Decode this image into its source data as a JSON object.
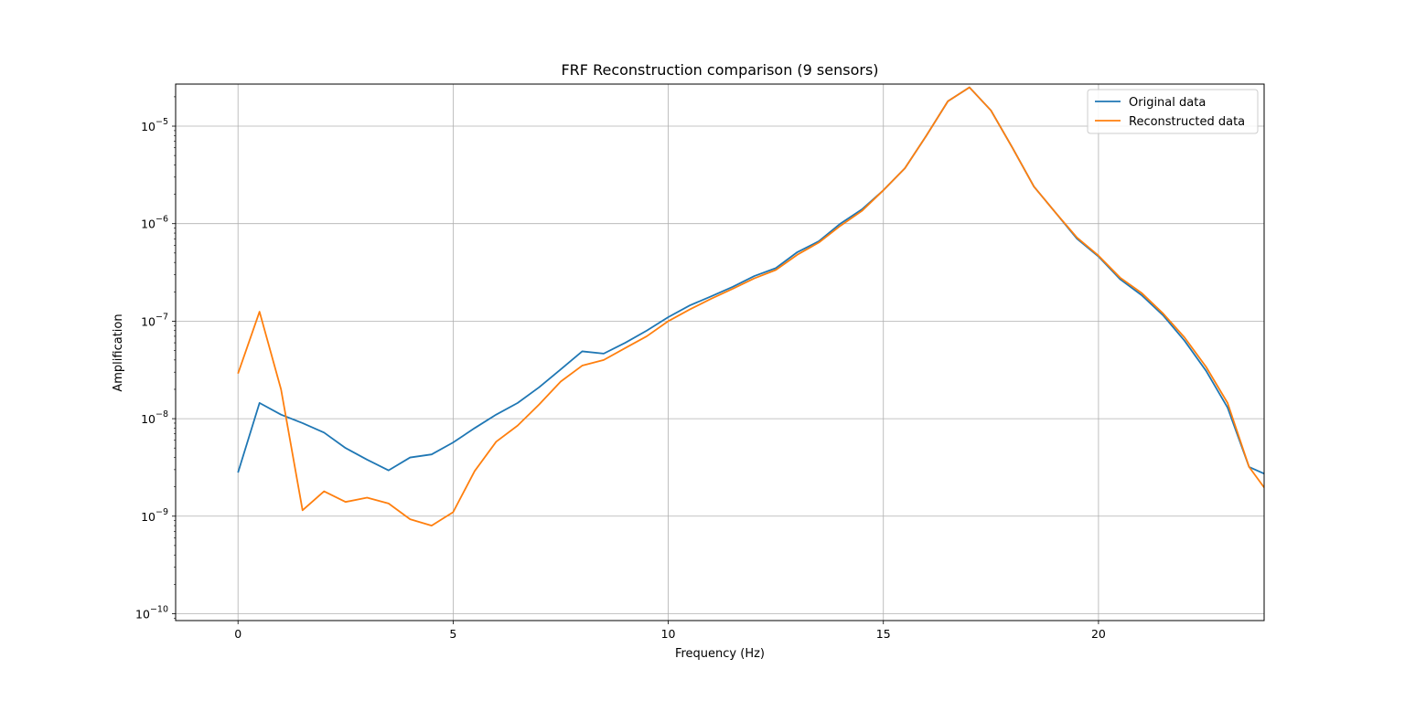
{
  "chart_data": {
    "type": "line",
    "title": "FRF Reconstruction comparison (9 sensors)",
    "xlabel": "Frequency (Hz)",
    "ylabel": "Amplification",
    "yscale": "log",
    "xlim": [
      -1.45,
      23.85
    ],
    "ylim": [
      8.5e-11,
      2.7e-05
    ],
    "grid": true,
    "legend_position": "top-right",
    "x_ticks": [
      0,
      5,
      10,
      15,
      20
    ],
    "x_tick_labels": [
      "0",
      "5",
      "10",
      "15",
      "20"
    ],
    "y_ticks": [
      1e-10,
      1e-09,
      1e-08,
      1e-07,
      1e-06,
      1e-05
    ],
    "y_tick_labels": [
      {
        "base": "10",
        "exp": "−10"
      },
      {
        "base": "10",
        "exp": "−9"
      },
      {
        "base": "10",
        "exp": "−8"
      },
      {
        "base": "10",
        "exp": "−7"
      },
      {
        "base": "10",
        "exp": "−6"
      },
      {
        "base": "10",
        "exp": "−5"
      }
    ],
    "x": [
      0,
      0.5,
      1,
      1.5,
      2,
      2.5,
      3,
      3.5,
      4,
      4.5,
      5,
      5.5,
      6,
      6.5,
      7,
      7.5,
      8,
      8.5,
      9,
      9.5,
      10,
      10.5,
      11,
      11.5,
      12,
      12.5,
      13,
      13.5,
      14,
      14.5,
      15,
      15.5,
      16,
      16.5,
      17,
      17.5,
      18,
      18.5,
      19,
      19.5,
      20,
      20.5,
      21,
      21.5,
      22,
      22.5,
      23,
      23.5,
      24
    ],
    "series": [
      {
        "name": "Original data",
        "color": "#1f77b4",
        "values": [
          2.8e-09,
          1.45e-08,
          1.1e-08,
          9e-09,
          7.2e-09,
          5e-09,
          3.8e-09,
          2.95e-09,
          4e-09,
          4.3e-09,
          5.7e-09,
          8e-09,
          1.1e-08,
          1.45e-08,
          2.1e-08,
          3.2e-08,
          4.9e-08,
          4.65e-08,
          6e-08,
          8e-08,
          1.1e-07,
          1.45e-07,
          1.8e-07,
          2.25e-07,
          2.9e-07,
          3.5e-07,
          5.1e-07,
          6.6e-07,
          1e-06,
          1.4e-06,
          2.2e-06,
          3.7e-06,
          8e-06,
          1.8e-05,
          2.5e-05,
          1.45e-05,
          6e-06,
          2.4e-06,
          1.3e-06,
          7e-07,
          4.6e-07,
          2.7e-07,
          1.85e-07,
          1.15e-07,
          6.3e-08,
          3.1e-08,
          1.3e-08,
          3.2e-09,
          2.55e-09
        ]
      },
      {
        "name": "Reconstructed data",
        "color": "#ff7f0e",
        "values": [
          2.9e-08,
          1.25e-07,
          2e-08,
          1.15e-09,
          1.8e-09,
          1.4e-09,
          1.55e-09,
          1.35e-09,
          9.3e-10,
          8e-10,
          1.1e-09,
          2.9e-09,
          5.8e-09,
          8.5e-09,
          1.4e-08,
          2.4e-08,
          3.5e-08,
          4e-08,
          5.3e-08,
          7e-08,
          1e-07,
          1.32e-07,
          1.7e-07,
          2.15e-07,
          2.75e-07,
          3.35e-07,
          4.8e-07,
          6.4e-07,
          9.5e-07,
          1.35e-06,
          2.2e-06,
          3.7e-06,
          8e-06,
          1.8e-05,
          2.5e-05,
          1.45e-05,
          6e-06,
          2.4e-06,
          1.3e-06,
          7.2e-07,
          4.7e-07,
          2.8e-07,
          1.95e-07,
          1.2e-07,
          6.8e-08,
          3.4e-08,
          1.45e-08,
          3.2e-09,
          1.6e-09
        ]
      }
    ]
  }
}
